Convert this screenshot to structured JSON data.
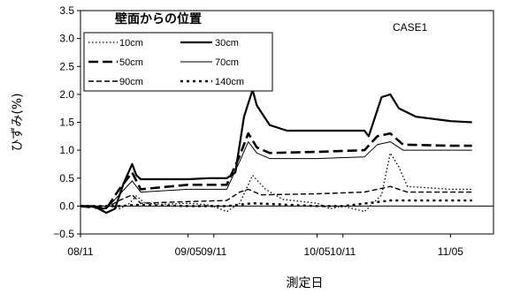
{
  "chart_data": {
    "type": "line",
    "title": "",
    "annotation": "CASE1",
    "xlabel": "測定日",
    "ylabel": "ひずみ(%)",
    "xlim": [
      "2006-08-11",
      "2006-11-15"
    ],
    "ylim": [
      -0.5,
      3.5
    ],
    "y_ticks": [
      -0.5,
      0.0,
      0.5,
      1.0,
      1.5,
      2.0,
      2.5,
      3.0,
      3.5
    ],
    "y_tick_labels": [
      "−0.5",
      "0.0",
      "0.5",
      "1.0",
      "1.5",
      "2.0",
      "2.5",
      "3.0",
      "3.5"
    ],
    "x_ticks": [
      "2006-08-11",
      "2006-09-05",
      "2006-09-11",
      "2006-10-05",
      "2006-10-11",
      "2006-11-05"
    ],
    "x_tick_labels": [
      "08/11",
      "09/05",
      "09/11",
      "10/05",
      "10/11",
      "11/05"
    ],
    "legend": {
      "title": "壁面からの位置",
      "placement": "top-left"
    },
    "grid": false,
    "series": [
      {
        "name": "10cm",
        "style": "dotted",
        "points": [
          [
            "2006-08-11",
            0.0
          ],
          [
            "2006-08-18",
            0.0
          ],
          [
            "2006-08-20",
            -0.05
          ],
          [
            "2006-08-22",
            0.02
          ],
          [
            "2006-08-24",
            0.18
          ],
          [
            "2006-08-26",
            0.05
          ],
          [
            "2006-08-30",
            0.03
          ],
          [
            "2006-09-05",
            0.05
          ],
          [
            "2006-09-10",
            0.02
          ],
          [
            "2006-09-14",
            -0.1
          ],
          [
            "2006-09-17",
            0.05
          ],
          [
            "2006-09-20",
            0.55
          ],
          [
            "2006-09-23",
            0.3
          ],
          [
            "2006-09-27",
            0.12
          ],
          [
            "2006-10-05",
            0.05
          ],
          [
            "2006-10-08",
            -0.05
          ],
          [
            "2006-10-11",
            0.0
          ],
          [
            "2006-10-16",
            -0.1
          ],
          [
            "2006-10-20",
            0.2
          ],
          [
            "2006-10-22",
            0.95
          ],
          [
            "2006-10-24",
            0.7
          ],
          [
            "2006-10-26",
            0.35
          ],
          [
            "2006-11-05",
            0.3
          ],
          [
            "2006-11-10",
            0.3
          ]
        ]
      },
      {
        "name": "30cm",
        "style": "solid-thick",
        "points": [
          [
            "2006-08-11",
            0.0
          ],
          [
            "2006-08-14",
            0.0
          ],
          [
            "2006-08-17",
            -0.12
          ],
          [
            "2006-08-19",
            -0.05
          ],
          [
            "2006-08-21",
            0.4
          ],
          [
            "2006-08-23",
            0.75
          ],
          [
            "2006-08-24",
            0.55
          ],
          [
            "2006-08-25",
            0.48
          ],
          [
            "2006-09-05",
            0.48
          ],
          [
            "2006-09-10",
            0.5
          ],
          [
            "2006-09-14",
            0.5
          ],
          [
            "2006-09-16",
            0.6
          ],
          [
            "2006-09-18",
            1.6
          ],
          [
            "2006-09-20",
            2.08
          ],
          [
            "2006-09-21",
            1.8
          ],
          [
            "2006-09-24",
            1.45
          ],
          [
            "2006-09-28",
            1.35
          ],
          [
            "2006-10-05",
            1.35
          ],
          [
            "2006-10-11",
            1.35
          ],
          [
            "2006-10-16",
            1.35
          ],
          [
            "2006-10-17",
            1.25
          ],
          [
            "2006-10-20",
            1.95
          ],
          [
            "2006-10-22",
            2.0
          ],
          [
            "2006-10-24",
            1.75
          ],
          [
            "2006-10-28",
            1.6
          ],
          [
            "2006-11-05",
            1.52
          ],
          [
            "2006-11-10",
            1.5
          ]
        ]
      },
      {
        "name": "50cm",
        "style": "dash-thick",
        "points": [
          [
            "2006-08-11",
            0.0
          ],
          [
            "2006-08-17",
            -0.05
          ],
          [
            "2006-08-20",
            0.3
          ],
          [
            "2006-08-23",
            0.6
          ],
          [
            "2006-08-25",
            0.3
          ],
          [
            "2006-09-05",
            0.38
          ],
          [
            "2006-09-14",
            0.38
          ],
          [
            "2006-09-17",
            0.9
          ],
          [
            "2006-09-19",
            1.3
          ],
          [
            "2006-09-21",
            1.05
          ],
          [
            "2006-09-24",
            0.95
          ],
          [
            "2006-10-05",
            0.97
          ],
          [
            "2006-10-16",
            1.0
          ],
          [
            "2006-10-19",
            1.25
          ],
          [
            "2006-10-22",
            1.3
          ],
          [
            "2006-10-25",
            1.1
          ],
          [
            "2006-11-05",
            1.08
          ],
          [
            "2006-11-10",
            1.08
          ]
        ]
      },
      {
        "name": "70cm",
        "style": "solid-thin",
        "points": [
          [
            "2006-08-11",
            0.0
          ],
          [
            "2006-08-17",
            -0.05
          ],
          [
            "2006-08-20",
            0.2
          ],
          [
            "2006-08-23",
            0.45
          ],
          [
            "2006-08-25",
            0.25
          ],
          [
            "2006-09-05",
            0.3
          ],
          [
            "2006-09-14",
            0.3
          ],
          [
            "2006-09-17",
            0.8
          ],
          [
            "2006-09-19",
            1.15
          ],
          [
            "2006-09-21",
            0.95
          ],
          [
            "2006-09-24",
            0.85
          ],
          [
            "2006-10-05",
            0.85
          ],
          [
            "2006-10-16",
            0.88
          ],
          [
            "2006-10-19",
            1.1
          ],
          [
            "2006-10-22",
            1.15
          ],
          [
            "2006-10-25",
            1.0
          ],
          [
            "2006-11-05",
            1.0
          ],
          [
            "2006-11-10",
            1.0
          ]
        ]
      },
      {
        "name": "90cm",
        "style": "dashed",
        "points": [
          [
            "2006-08-11",
            0.0
          ],
          [
            "2006-08-17",
            -0.03
          ],
          [
            "2006-08-20",
            0.1
          ],
          [
            "2006-08-23",
            0.2
          ],
          [
            "2006-08-25",
            0.05
          ],
          [
            "2006-09-05",
            0.08
          ],
          [
            "2006-09-14",
            0.1
          ],
          [
            "2006-09-17",
            0.25
          ],
          [
            "2006-09-19",
            0.3
          ],
          [
            "2006-09-22",
            0.2
          ],
          [
            "2006-10-05",
            0.22
          ],
          [
            "2006-10-16",
            0.25
          ],
          [
            "2006-10-19",
            0.3
          ],
          [
            "2006-10-22",
            0.35
          ],
          [
            "2006-10-26",
            0.25
          ],
          [
            "2006-11-05",
            0.25
          ],
          [
            "2006-11-10",
            0.25
          ]
        ]
      },
      {
        "name": "140cm",
        "style": "dotted-thick",
        "points": [
          [
            "2006-08-11",
            0.0
          ],
          [
            "2006-08-20",
            0.0
          ],
          [
            "2006-08-24",
            0.02
          ],
          [
            "2006-09-05",
            0.0
          ],
          [
            "2006-09-14",
            0.0
          ],
          [
            "2006-09-20",
            0.05
          ],
          [
            "2006-10-05",
            0.0
          ],
          [
            "2006-10-11",
            0.0
          ],
          [
            "2006-10-22",
            0.1
          ],
          [
            "2006-11-05",
            0.1
          ],
          [
            "2006-11-10",
            0.1
          ]
        ]
      }
    ]
  }
}
